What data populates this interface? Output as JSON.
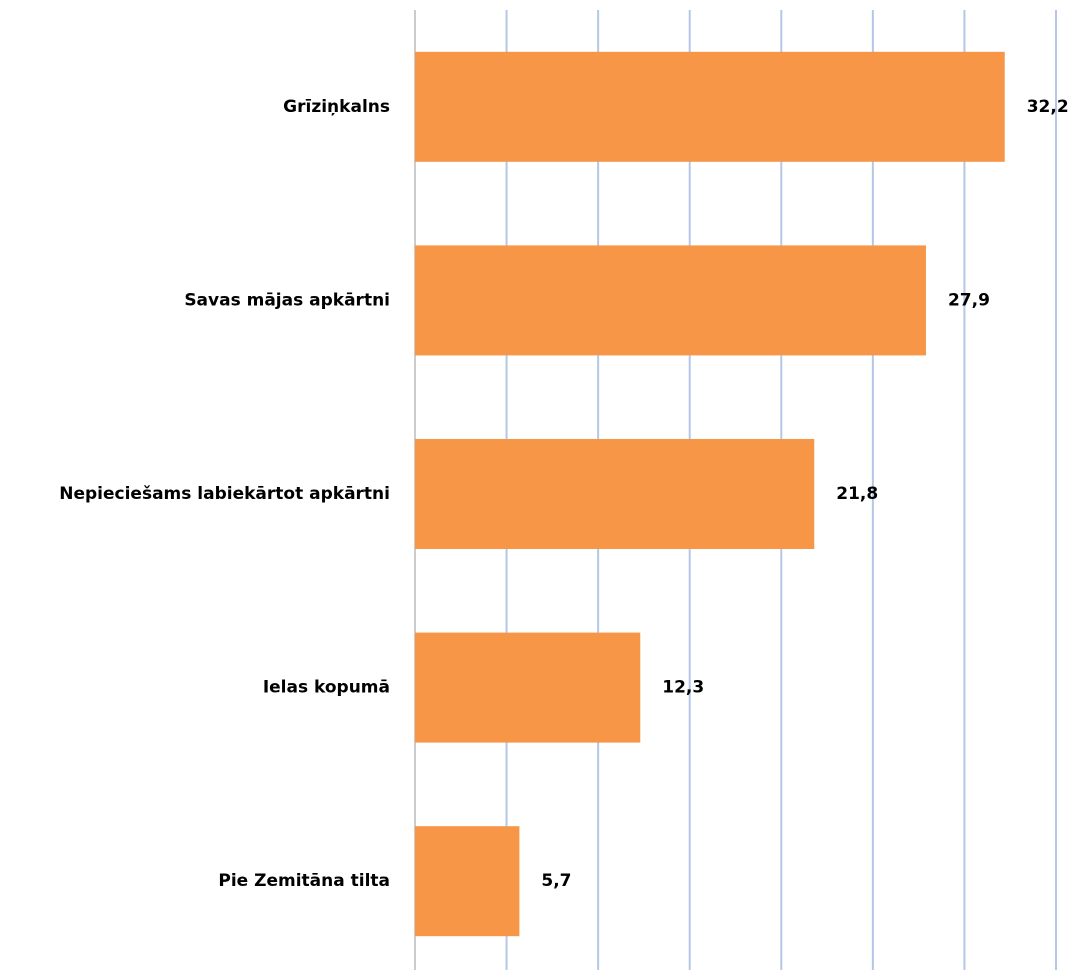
{
  "chart_data": {
    "type": "bar",
    "orientation": "horizontal",
    "categories": [
      "Grīziņkalns",
      "Savas mājas apkārtni",
      "Nepieciešams labiekārtot apkārtni",
      "Ielas kopumā",
      "Pie Zemitāna tilta"
    ],
    "values": [
      32.2,
      27.9,
      21.8,
      12.3,
      5.7
    ],
    "value_labels": [
      "32,2",
      "27,9",
      "21,8",
      "12,3",
      "5,7"
    ],
    "color": "#f79646",
    "xlim": [
      0,
      35
    ],
    "xticks": [
      0,
      5,
      10,
      15,
      20,
      25,
      30,
      35
    ],
    "grid": true
  }
}
